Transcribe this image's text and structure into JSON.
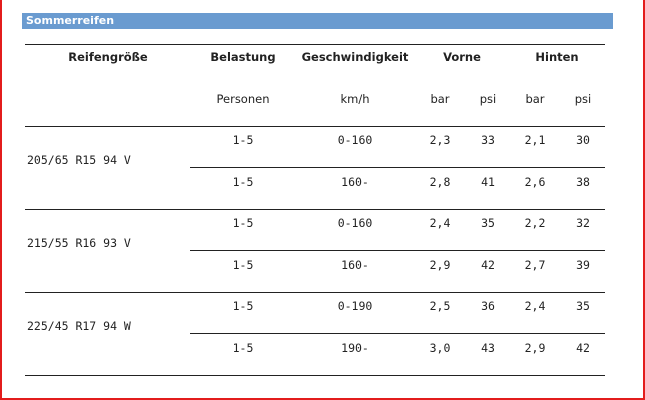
{
  "title": "Sommerreifen",
  "header": {
    "size": "Reifengröße",
    "load": "Belastung",
    "speed": "Geschwindigkeit",
    "front": "Vorne",
    "rear": "Hinten"
  },
  "subheader": {
    "load": "Personen",
    "speed": "km/h",
    "front_bar": "bar",
    "front_psi": "psi",
    "rear_bar": "bar",
    "rear_psi": "psi"
  },
  "groups": [
    {
      "size": "205/65 R15 94 V",
      "rows": [
        {
          "load": "1-5",
          "speed": "0-160",
          "front_bar": "2,3",
          "front_psi": "33",
          "rear_bar": "2,1",
          "rear_psi": "30"
        },
        {
          "load": "1-5",
          "speed": "160-",
          "front_bar": "2,8",
          "front_psi": "41",
          "rear_bar": "2,6",
          "rear_psi": "38"
        }
      ]
    },
    {
      "size": "215/55 R16 93 V",
      "rows": [
        {
          "load": "1-5",
          "speed": "0-160",
          "front_bar": "2,4",
          "front_psi": "35",
          "rear_bar": "2,2",
          "rear_psi": "32"
        },
        {
          "load": "1-5",
          "speed": "160-",
          "front_bar": "2,9",
          "front_psi": "42",
          "rear_bar": "2,7",
          "rear_psi": "39"
        }
      ]
    },
    {
      "size": "225/45 R17 94 W",
      "rows": [
        {
          "load": "1-5",
          "speed": "0-190",
          "front_bar": "2,5",
          "front_psi": "36",
          "rear_bar": "2,4",
          "rear_psi": "35"
        },
        {
          "load": "1-5",
          "speed": "190-",
          "front_bar": "3,0",
          "front_psi": "43",
          "rear_bar": "2,9",
          "rear_psi": "42"
        }
      ]
    }
  ],
  "colors": {
    "title_bar": "#6a9bd0",
    "frame": "#e31c1c"
  }
}
